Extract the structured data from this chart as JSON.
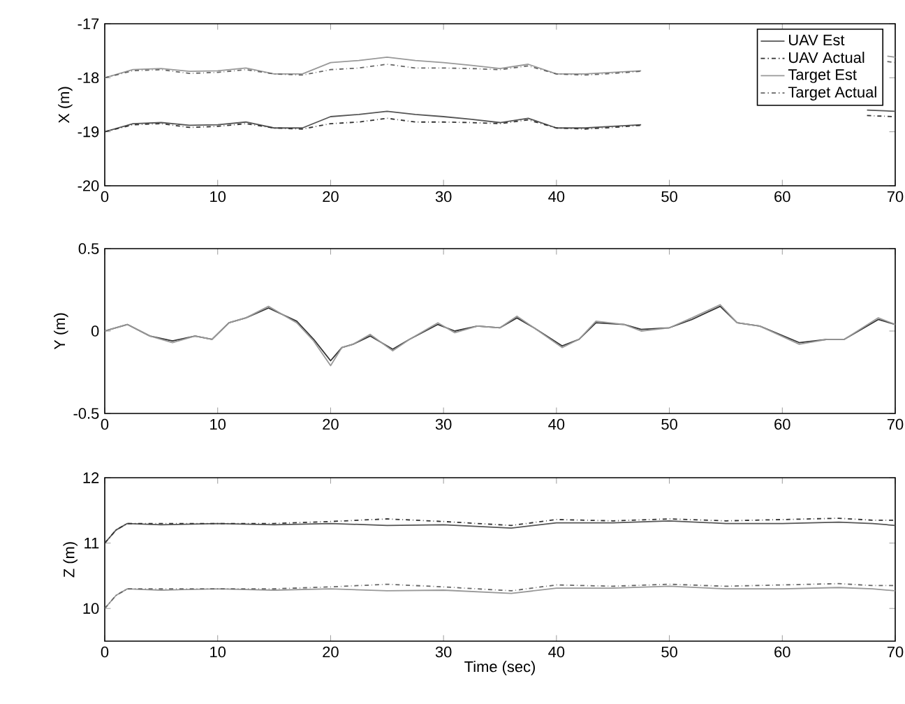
{
  "chart_data": [
    {
      "type": "line",
      "ylabel": "X (m)",
      "legend": "top right",
      "grid": false,
      "marker": "none",
      "x": [
        0,
        2.5,
        5,
        7.5,
        10,
        12.5,
        15,
        17.5,
        20,
        22.5,
        25,
        27.5,
        30,
        32.5,
        35,
        37.5,
        40,
        42.5,
        45,
        47.5,
        50,
        52.5,
        55,
        57.5,
        60,
        62.5,
        65,
        67.5,
        70
      ],
      "xlim": [
        0,
        70
      ],
      "xticks": [
        0,
        10,
        20,
        30,
        40,
        50,
        60,
        70
      ],
      "ylim": [
        -20,
        -17
      ],
      "yticks": [
        -20,
        -19,
        -18,
        -17
      ],
      "series": [
        {
          "name": "UAV Est",
          "color": "#555555",
          "line_style": "solid",
          "values": [
            -19.0,
            -18.85,
            -18.83,
            -18.88,
            -18.87,
            -18.82,
            -18.93,
            -18.93,
            -18.72,
            -18.68,
            -18.62,
            -18.68,
            -18.72,
            -18.77,
            -18.83,
            -18.75,
            -18.93,
            -18.93,
            -18.9,
            -18.87,
            null,
            null,
            null,
            null,
            null,
            null,
            null,
            -18.6,
            -18.62
          ]
        },
        {
          "name": "UAV Actual",
          "color": "#333333",
          "line_style": "dashdot",
          "values": [
            -19.0,
            -18.87,
            -18.85,
            -18.92,
            -18.9,
            -18.85,
            -18.93,
            -18.95,
            -18.85,
            -18.82,
            -18.75,
            -18.82,
            -18.82,
            -18.83,
            -18.85,
            -18.78,
            -18.93,
            -18.95,
            -18.92,
            -18.88,
            null,
            null,
            null,
            null,
            null,
            null,
            null,
            -18.7,
            -18.72
          ]
        },
        {
          "name": "Target Est",
          "color": "#999999",
          "line_style": "solid",
          "x": [
            0,
            2.5,
            5,
            7.5,
            10,
            12.5,
            15,
            17.5,
            20,
            22.5,
            25,
            27.5,
            30,
            32.5,
            35,
            37.5,
            40,
            42.5,
            45,
            47.5,
            50,
            52.5,
            55,
            57.5,
            60,
            62.5,
            65,
            69.3,
            70
          ],
          "values": [
            -18.0,
            -17.85,
            -17.83,
            -17.88,
            -17.87,
            -17.82,
            -17.93,
            -17.93,
            -17.72,
            -17.68,
            -17.62,
            -17.68,
            -17.72,
            -17.77,
            -17.83,
            -17.75,
            -17.93,
            -17.93,
            -17.9,
            -17.87,
            null,
            null,
            null,
            null,
            null,
            null,
            null,
            -17.6,
            -17.62
          ]
        },
        {
          "name": "Target Actual",
          "color": "#666666",
          "line_style": "dashdot",
          "x": [
            0,
            2.5,
            5,
            7.5,
            10,
            12.5,
            15,
            17.5,
            20,
            22.5,
            25,
            27.5,
            30,
            32.5,
            35,
            37.5,
            40,
            42.5,
            45,
            47.5,
            50,
            52.5,
            55,
            57.5,
            60,
            62.5,
            65,
            69.3,
            70
          ],
          "values": [
            -18.0,
            -17.87,
            -17.85,
            -17.92,
            -17.9,
            -17.85,
            -17.93,
            -17.95,
            -17.85,
            -17.82,
            -17.75,
            -17.82,
            -17.82,
            -17.83,
            -17.85,
            -17.78,
            -17.93,
            -17.95,
            -17.92,
            -17.88,
            null,
            null,
            null,
            null,
            null,
            null,
            null,
            -17.7,
            -17.72
          ]
        }
      ]
    },
    {
      "type": "line",
      "ylabel": "Y (m)",
      "grid": false,
      "marker": "none",
      "x": [
        0,
        2,
        4,
        6,
        8,
        9.5,
        11,
        12.5,
        14.5,
        17,
        18.5,
        20,
        21,
        22,
        23.5,
        25.5,
        27,
        29.5,
        31,
        33,
        35,
        36.5,
        38,
        40.5,
        42,
        43.5,
        46,
        47.5,
        50,
        52,
        54.5,
        56,
        58,
        61.5,
        64,
        65.5,
        68.5,
        70
      ],
      "xlim": [
        0,
        70
      ],
      "xticks": [
        0,
        10,
        20,
        30,
        40,
        50,
        60,
        70
      ],
      "ylim": [
        -0.5,
        0.5
      ],
      "yticks": [
        -0.5,
        0,
        0.5
      ],
      "series": [
        {
          "color": "#333333",
          "line_style": "solid",
          "values": [
            0.0,
            0.04,
            -0.03,
            -0.06,
            -0.03,
            -0.05,
            0.05,
            0.08,
            0.14,
            0.06,
            -0.05,
            -0.18,
            -0.1,
            -0.08,
            -0.03,
            -0.11,
            -0.05,
            0.04,
            0.0,
            0.03,
            0.02,
            0.08,
            0.02,
            -0.09,
            -0.05,
            0.05,
            0.04,
            0.01,
            0.02,
            0.07,
            0.15,
            0.05,
            0.03,
            -0.07,
            -0.05,
            -0.05,
            0.07,
            0.04
          ]
        },
        {
          "color": "#999999",
          "line_style": "solid",
          "values": [
            0.0,
            0.04,
            -0.03,
            -0.07,
            -0.03,
            -0.05,
            0.05,
            0.08,
            0.15,
            0.05,
            -0.06,
            -0.21,
            -0.1,
            -0.08,
            -0.02,
            -0.12,
            -0.05,
            0.05,
            -0.01,
            0.03,
            0.02,
            0.09,
            0.02,
            -0.1,
            -0.05,
            0.06,
            0.04,
            0.0,
            0.02,
            0.08,
            0.16,
            0.05,
            0.03,
            -0.08,
            -0.05,
            -0.05,
            0.08,
            0.04
          ]
        }
      ]
    },
    {
      "type": "line",
      "ylabel": "Z (m)",
      "xlabel": "Time (sec)",
      "grid": false,
      "marker": "none",
      "x": [
        0,
        1,
        2,
        5,
        10,
        15,
        20,
        25,
        30,
        36,
        40,
        45,
        50,
        55,
        60,
        65,
        68,
        70
      ],
      "xlim": [
        0,
        70
      ],
      "xticks": [
        0,
        10,
        20,
        30,
        40,
        50,
        60,
        70
      ],
      "ylim": [
        9.5,
        12
      ],
      "yticks": [
        10,
        11,
        12
      ],
      "series": [
        {
          "color": "#555555",
          "line_style": "solid",
          "values": [
            11.0,
            11.2,
            11.3,
            11.28,
            11.3,
            11.28,
            11.3,
            11.27,
            11.28,
            11.23,
            11.31,
            11.31,
            11.34,
            11.3,
            11.3,
            11.32,
            11.3,
            11.27
          ]
        },
        {
          "color": "#333333",
          "line_style": "dashdot",
          "values": [
            11.0,
            11.2,
            11.3,
            11.3,
            11.3,
            11.3,
            11.33,
            11.37,
            11.33,
            11.27,
            11.36,
            11.34,
            11.37,
            11.34,
            11.36,
            11.38,
            11.35,
            11.35
          ]
        },
        {
          "color": "#999999",
          "line_style": "solid",
          "values": [
            10.0,
            10.2,
            10.3,
            10.28,
            10.3,
            10.28,
            10.3,
            10.27,
            10.28,
            10.23,
            10.31,
            10.31,
            10.34,
            10.3,
            10.3,
            10.32,
            10.3,
            10.27
          ]
        },
        {
          "color": "#666666",
          "line_style": "dashdot",
          "values": [
            10.0,
            10.2,
            10.3,
            10.3,
            10.3,
            10.3,
            10.33,
            10.37,
            10.33,
            10.27,
            10.36,
            10.34,
            10.37,
            10.34,
            10.36,
            10.38,
            10.35,
            10.35
          ]
        }
      ]
    }
  ]
}
